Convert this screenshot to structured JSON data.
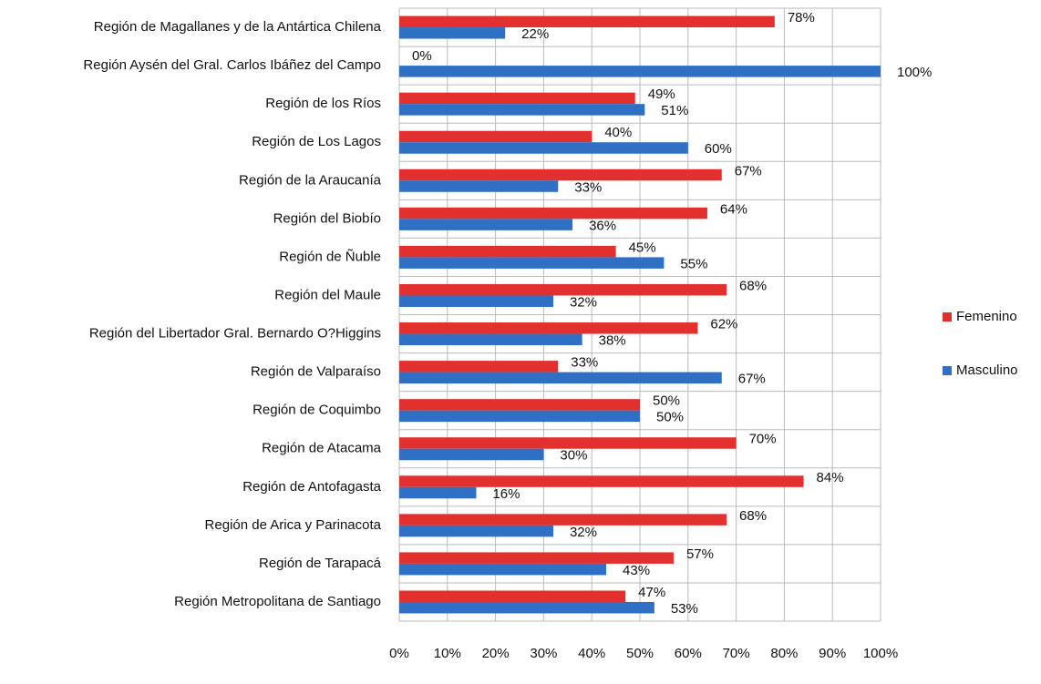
{
  "chart_data": {
    "type": "barh",
    "categories": [
      "Región de Magallanes y de la Antártica Chilena",
      "Región Aysén del Gral. Carlos Ibáñez del Campo",
      "Región de los Ríos",
      "Región de Los Lagos",
      "Región de la Araucanía",
      "Región del Biobío",
      "Región de Ñuble",
      "Región del Maule",
      "Región del Libertador Gral. Bernardo O?Higgins",
      "Región de Valparaíso",
      "Región de Coquimbo",
      "Región de Atacama",
      "Región de Antofagasta",
      "Región de Arica y Parinacota",
      "Región de Tarapacá",
      "Región Metropolitana de Santiago"
    ],
    "series": [
      {
        "name": "Femenino",
        "color": "#e2302f",
        "values": [
          78,
          0,
          49,
          40,
          67,
          64,
          45,
          68,
          62,
          33,
          50,
          70,
          84,
          68,
          57,
          47
        ],
        "value_labels": [
          "78%",
          "0%",
          "49%",
          "40%",
          "67%",
          "64%",
          "45%",
          "68%",
          "62%",
          "33%",
          "50%",
          "70%",
          "84%",
          "68%",
          "57%",
          "47%"
        ]
      },
      {
        "name": "Masculino",
        "color": "#2f6fc4",
        "values": [
          22,
          100,
          51,
          60,
          33,
          36,
          55,
          32,
          38,
          67,
          50,
          30,
          16,
          32,
          43,
          53
        ],
        "value_labels": [
          "22%",
          "100%",
          "51%",
          "60%",
          "33%",
          "36%",
          "55%",
          "32%",
          "38%",
          "67%",
          "50%",
          "30%",
          "16%",
          "32%",
          "43%",
          "53%"
        ]
      }
    ],
    "xlim": [
      0,
      100
    ],
    "xticks": [
      {
        "value": 0,
        "label": "0%"
      },
      {
        "value": 10,
        "label": "10%"
      },
      {
        "value": 20,
        "label": "20%"
      },
      {
        "value": 30,
        "label": "30%"
      },
      {
        "value": 40,
        "label": "40%"
      },
      {
        "value": 50,
        "label": "50%"
      },
      {
        "value": 60,
        "label": "60%"
      },
      {
        "value": 70,
        "label": "70%"
      },
      {
        "value": 80,
        "label": "80%"
      },
      {
        "value": 90,
        "label": "90%"
      },
      {
        "value": 100,
        "label": "100%"
      }
    ],
    "grid": true,
    "legend": "right"
  }
}
